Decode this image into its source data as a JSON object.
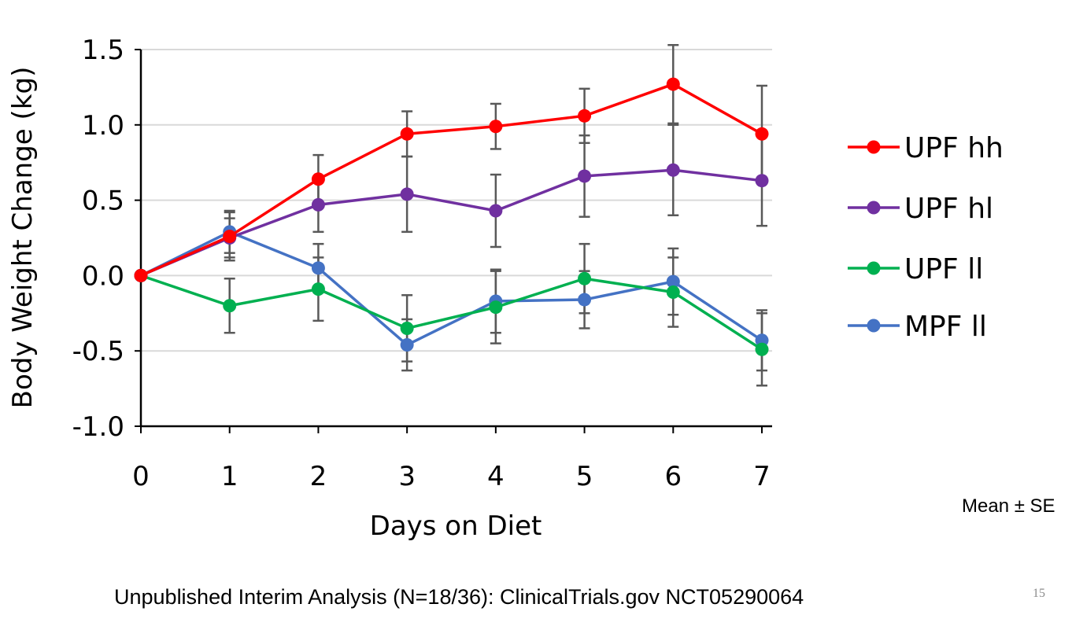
{
  "chart_data": {
    "type": "line",
    "xlabel": "Days on Diet",
    "ylabel": "Body Weight Change (kg)",
    "x": [
      0,
      1,
      2,
      3,
      4,
      5,
      6,
      7
    ],
    "x_tick_labels": [
      "0",
      "1",
      "2",
      "3",
      "4",
      "5",
      "6",
      "7"
    ],
    "ylim": [
      -1.0,
      1.5
    ],
    "y_ticks": [
      -1.0,
      -0.5,
      0.0,
      0.5,
      1.0,
      1.5
    ],
    "y_tick_labels": [
      "-1.0",
      "-0.5",
      "0.0",
      "0.5",
      "1.0",
      "1.5"
    ],
    "grid": "horizontal",
    "legend_position": "right",
    "error_bars": "Mean ± SE",
    "series": [
      {
        "name": "UPF hh",
        "color": "#ff0000",
        "values": [
          0.0,
          0.26,
          0.64,
          0.94,
          0.99,
          1.06,
          1.27,
          0.94
        ],
        "err": [
          0.0,
          0.16,
          0.16,
          0.15,
          0.15,
          0.18,
          0.26,
          0.32
        ]
      },
      {
        "name": "UPF hl",
        "color": "#7030a0",
        "values": [
          0.0,
          0.25,
          0.47,
          0.54,
          0.43,
          0.66,
          0.7,
          0.63
        ],
        "err": [
          0.0,
          0.13,
          0.18,
          0.25,
          0.24,
          0.27,
          0.3,
          0.3
        ]
      },
      {
        "name": "UPF ll",
        "color": "#00b050",
        "values": [
          0.0,
          -0.2,
          -0.09,
          -0.35,
          -0.21,
          -0.02,
          -0.11,
          -0.49
        ],
        "err": [
          0.0,
          0.18,
          0.21,
          0.22,
          0.24,
          0.23,
          0.23,
          0.24
        ]
      },
      {
        "name": "MPF ll",
        "color": "#4472c4",
        "values": [
          0.0,
          0.29,
          0.05,
          -0.46,
          -0.17,
          -0.16,
          -0.04,
          -0.43
        ],
        "err": [
          0.0,
          0.14,
          0.16,
          0.17,
          0.21,
          0.19,
          0.22,
          0.2
        ]
      }
    ]
  },
  "notes": {
    "mean_se": "Mean ± SE",
    "footer": "Unpublished Interim Analysis (N=18/36): ClinicalTrials.gov NCT05290064",
    "page_number": "15"
  }
}
